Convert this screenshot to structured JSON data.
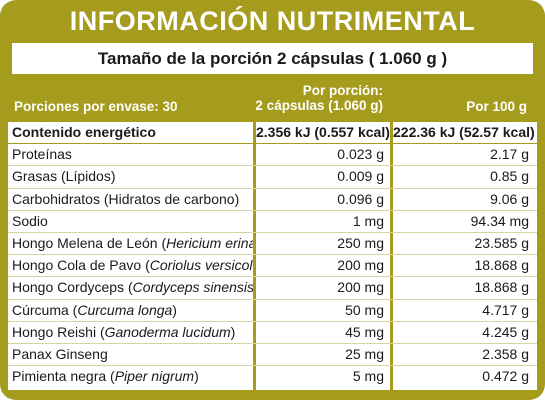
{
  "title": "INFORMACIÓN NUTRIMENTAL",
  "serving_size": "Tamaño de la porción 2 cápsulas ( 1.060 g )",
  "header": {
    "servings_per_container": "Porciones por envase: 30",
    "col1_line1": "Por porción:",
    "col1_line2": "2 cápsulas (1.060 g)",
    "col2": "Por 100 g"
  },
  "colors": {
    "frame": "#a59b1c",
    "text": "#1a1a1a",
    "row_rule": "#d9d3a0"
  },
  "rows": [
    {
      "name": "Contenido energético",
      "per_serving": "2.356 kJ (0.557 kcal)",
      "per_100g": "222.36 kJ (52.57 kcal)",
      "bold": true
    },
    {
      "name": "Proteínas",
      "per_serving": "0.023 g",
      "per_100g": "2.17 g"
    },
    {
      "name": "Grasas (Lípidos)",
      "per_serving": "0.009 g",
      "per_100g": "0.85 g"
    },
    {
      "name": "Carbohidratos (Hidratos de carbono)",
      "per_serving": "0.096 g",
      "per_100g": "9.06 g"
    },
    {
      "name": "Sodio",
      "per_serving": "1 mg",
      "per_100g": "94.34 mg"
    },
    {
      "name": "Hongo Melena de León (",
      "sci": "Hericium erinaceus",
      "suffix": ")",
      "per_serving": "250 mg",
      "per_100g": "23.585 g"
    },
    {
      "name": "Hongo Cola de Pavo (",
      "sci": "Coriolus versicolor",
      "suffix": ")",
      "per_serving": "200 mg",
      "per_100g": "18.868 g"
    },
    {
      "name": "Hongo Cordyceps (",
      "sci": "Cordyceps sinensis",
      "suffix": ")",
      "per_serving": "200 mg",
      "per_100g": "18.868 g"
    },
    {
      "name": "Cúrcuma (",
      "sci": "Curcuma longa",
      "suffix": ")",
      "per_serving": "50 mg",
      "per_100g": "4.717 g"
    },
    {
      "name": "Hongo Reishi (",
      "sci": "Ganoderma lucidum",
      "suffix": ")",
      "per_serving": "45 mg",
      "per_100g": "4.245 g"
    },
    {
      "name": "Panax Ginseng",
      "per_serving": "25 mg",
      "per_100g": "2.358 g"
    },
    {
      "name": "Pimienta negra (",
      "sci": "Piper nigrum",
      "suffix": ")",
      "per_serving": "5 mg",
      "per_100g": "0.472 g"
    }
  ]
}
